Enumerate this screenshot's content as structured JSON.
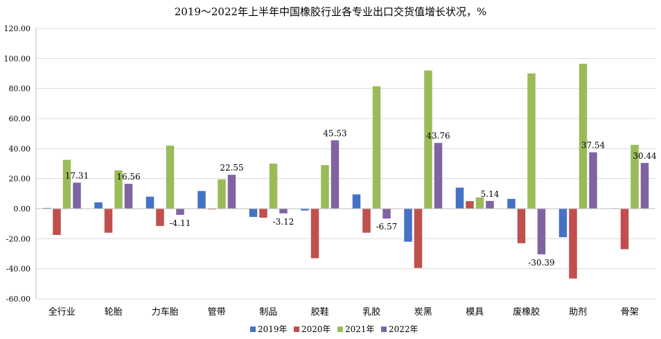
{
  "chart_data": {
    "type": "bar",
    "title": "2019～2022年上半年中国橡胶行业各专业出口交货值增长状况，%",
    "categories": [
      "全行业",
      "轮胎",
      "力车胎",
      "管带",
      "制品",
      "胶鞋",
      "乳胶",
      "炭黑",
      "模具",
      "废橡胶",
      "助剂",
      "骨架"
    ],
    "ylim": [
      -60,
      120
    ],
    "yticks": [
      "120.00",
      "100.00",
      "80.00",
      "60.00",
      "40.00",
      "20.00",
      "0.00",
      "-20.00",
      "-40.00",
      "-60.00"
    ],
    "grid": true,
    "legend_position": "bottom",
    "series": [
      {
        "name": "2019年",
        "color": "#4472c4",
        "values": [
          0.5,
          4.2,
          8.0,
          11.8,
          -5.5,
          -1.2,
          9.5,
          -22.0,
          14.0,
          6.5,
          -19.0,
          0.3
        ]
      },
      {
        "name": "2020年",
        "color": "#c0504d",
        "values": [
          -17.5,
          -16.0,
          -11.5,
          -0.5,
          -6.0,
          -33.0,
          -16.0,
          -39.5,
          5.0,
          -23.0,
          -46.5,
          -27.0
        ]
      },
      {
        "name": "2021年",
        "color": "#9bbb59",
        "values": [
          32.5,
          25.5,
          42.0,
          19.5,
          30.0,
          29.0,
          81.5,
          92.0,
          7.5,
          90.0,
          96.5,
          42.5
        ]
      },
      {
        "name": "2022年",
        "color": "#8064a2",
        "values": [
          17.31,
          16.56,
          -4.11,
          22.55,
          -3.12,
          45.53,
          -6.57,
          43.76,
          5.14,
          -30.39,
          37.54,
          30.44
        ]
      }
    ],
    "data_labels": [
      "17.31",
      "16.56",
      "-4.11",
      "22.55",
      "-3.12",
      "45.53",
      "-6.57",
      "43.76",
      "5.14",
      "-30.39",
      "37.54",
      "30.44"
    ]
  }
}
